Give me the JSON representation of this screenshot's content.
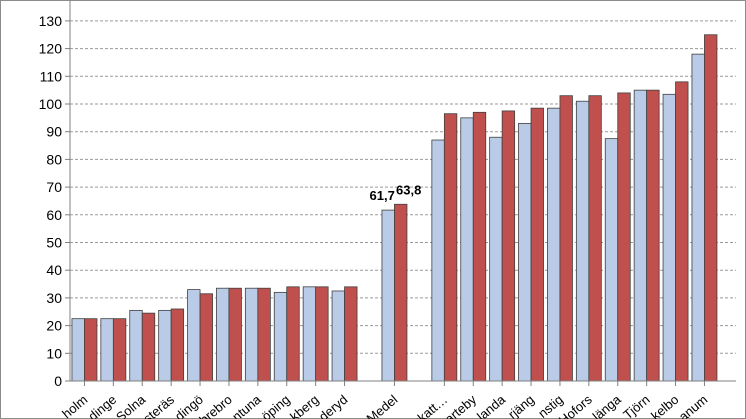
{
  "chart_data": {
    "type": "bar",
    "title": "",
    "xlabel": "",
    "ylabel": "",
    "ylim": [
      0,
      130
    ],
    "ytick_step": 10,
    "grid": true,
    "legend": "none",
    "categories": [
      "holm",
      "dinge",
      "Solna",
      "steräs",
      "dingö",
      "brebro",
      "ntuna",
      "öping",
      "kberg",
      "deryd",
      "Medel",
      "nskatt…",
      "arteby",
      "landa",
      "rjäng",
      "nstig",
      "Hofors",
      "länga",
      "Tjörn",
      "kelbo",
      "anum"
    ],
    "gap_after_index": 9,
    "gap_before_index": 11,
    "series": [
      {
        "color": "#b9cbe6",
        "values": [
          22.5,
          22.5,
          25.5,
          25.5,
          33,
          33.5,
          33.5,
          32,
          34,
          32.5,
          61.7,
          87,
          95,
          88,
          93,
          98.5,
          101,
          87.5,
          105,
          103.5,
          118
        ]
      },
      {
        "color": "#c0504d",
        "values": [
          22.5,
          22.5,
          24.5,
          26,
          31.5,
          33.5,
          33.5,
          34,
          34,
          34,
          63.8,
          96.5,
          97,
          97.5,
          98.5,
          103,
          103,
          104,
          105,
          108,
          125
        ]
      }
    ],
    "data_labels": [
      {
        "category_index": 10,
        "series_index": 0,
        "text": "61,7"
      },
      {
        "category_index": 10,
        "series_index": 1,
        "text": "63,8"
      }
    ]
  }
}
